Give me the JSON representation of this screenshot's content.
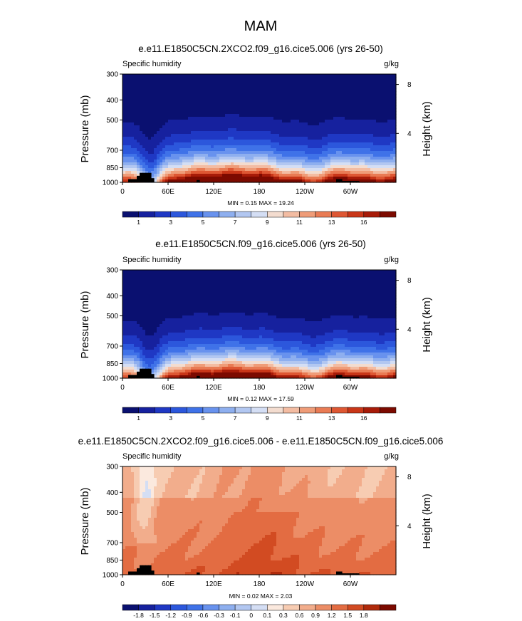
{
  "page_title": "MAM",
  "colors": {
    "land": "#000000",
    "blue_red_scale": [
      "#0a1070",
      "#16219e",
      "#1f38c4",
      "#2c57dc",
      "#3f72e8",
      "#6892ee",
      "#8eafef",
      "#b2c7f1",
      "#d4def4",
      "#f3dccf",
      "#f3bca2",
      "#ef9c78",
      "#e97b54",
      "#de5733",
      "#c93618",
      "#a71b08",
      "#7c0a00"
    ],
    "diff_scale": [
      "#0a1070",
      "#16219e",
      "#1f38c4",
      "#2c57dc",
      "#3f72e8",
      "#6892ee",
      "#8eafef",
      "#b2c7f1",
      "#d4def4",
      "#fbe9de",
      "#f7ccb2",
      "#f2ad8c",
      "#ec8d66",
      "#e36c42",
      "#d24b22",
      "#b02a0b",
      "#7c0a00"
    ]
  },
  "chart_data": [
    {
      "type": "heatmap",
      "title": "e.e11.E1850C5CN.2XCO2.f09_g16.cice5.006 (yrs 26-50)",
      "subtitle_left": "Specific humidity",
      "units": "g/kg",
      "ylabel": "Pressure (mb)",
      "ylabel_right": "Height (km)",
      "y_ticks": [
        "300",
        "400",
        "500",
        "700",
        "850",
        "1000"
      ],
      "y_tick_values": [
        300,
        400,
        500,
        700,
        850,
        1000
      ],
      "y_right_ticks": [
        "8",
        "4"
      ],
      "y_right_tick_values": [
        8,
        4
      ],
      "x_ticks": [
        "0",
        "60E",
        "120E",
        "180",
        "120W",
        "60W"
      ],
      "x_tick_values": [
        0,
        60,
        120,
        180,
        240,
        300
      ],
      "xlim": [
        0,
        360
      ],
      "ylim": [
        1000,
        300
      ],
      "min_max": "MIN =   0.15  MAX =  19.24",
      "min": 0.15,
      "max": 19.24,
      "scale": "blue_red",
      "moisture_factor": 1.08,
      "colorbar_labels": [
        "1",
        "3",
        "5",
        "7",
        "9",
        "11",
        "13",
        "16"
      ],
      "colorbar_label_positions": [
        1,
        3,
        5,
        7,
        9,
        11,
        13,
        15
      ]
    },
    {
      "type": "heatmap",
      "title": "e.e11.E1850C5CN.f09_g16.cice5.006 (yrs 26-50)",
      "subtitle_left": "Specific humidity",
      "units": "g/kg",
      "ylabel": "Pressure (mb)",
      "ylabel_right": "Height (km)",
      "y_ticks": [
        "300",
        "400",
        "500",
        "700",
        "850",
        "1000"
      ],
      "y_tick_values": [
        300,
        400,
        500,
        700,
        850,
        1000
      ],
      "y_right_ticks": [
        "8",
        "4"
      ],
      "y_right_tick_values": [
        8,
        4
      ],
      "x_ticks": [
        "0",
        "60E",
        "120E",
        "180",
        "120W",
        "60W"
      ],
      "x_tick_values": [
        0,
        60,
        120,
        180,
        240,
        300
      ],
      "xlim": [
        0,
        360
      ],
      "ylim": [
        1000,
        300
      ],
      "min_max": "MIN =   0.12  MAX =  17.59",
      "min": 0.12,
      "max": 17.59,
      "scale": "blue_red",
      "moisture_factor": 1.0,
      "colorbar_labels": [
        "1",
        "3",
        "5",
        "7",
        "9",
        "11",
        "13",
        "16"
      ],
      "colorbar_label_positions": [
        1,
        3,
        5,
        7,
        9,
        11,
        13,
        15
      ]
    },
    {
      "type": "heatmap",
      "title": "e.e11.E1850C5CN.2XCO2.f09_g16.cice5.006 - e.e11.E1850C5CN.f09_g16.cice5.006",
      "subtitle_left": "Specific humidity",
      "units": "g/kg",
      "ylabel": "Pressure (mb)",
      "ylabel_right": "Height (km)",
      "y_ticks": [
        "300",
        "400",
        "500",
        "700",
        "850",
        "1000"
      ],
      "y_tick_values": [
        300,
        400,
        500,
        700,
        850,
        1000
      ],
      "y_right_ticks": [
        "8",
        "4"
      ],
      "y_right_tick_values": [
        8,
        4
      ],
      "x_ticks": [
        "0",
        "60E",
        "120E",
        "180",
        "120W",
        "60W"
      ],
      "x_tick_values": [
        0,
        60,
        120,
        180,
        240,
        300
      ],
      "xlim": [
        0,
        360
      ],
      "ylim": [
        1000,
        300
      ],
      "min_max": "MIN =   0.02  MAX =   2.03",
      "min": 0.02,
      "max": 2.03,
      "scale": "diff",
      "colorbar_labels": [
        "-1.8",
        "-1.5",
        "-1.2",
        "-0.9",
        "-0.6",
        "-0.3",
        "-0.1",
        "0",
        "0.1",
        "0.3",
        "0.6",
        "0.9",
        "1.2",
        "1.5",
        "1.8"
      ],
      "colorbar_label_positions": [
        1,
        2,
        3,
        4,
        5,
        6,
        7,
        8,
        9,
        10,
        11,
        12,
        13,
        14,
        15
      ]
    }
  ]
}
